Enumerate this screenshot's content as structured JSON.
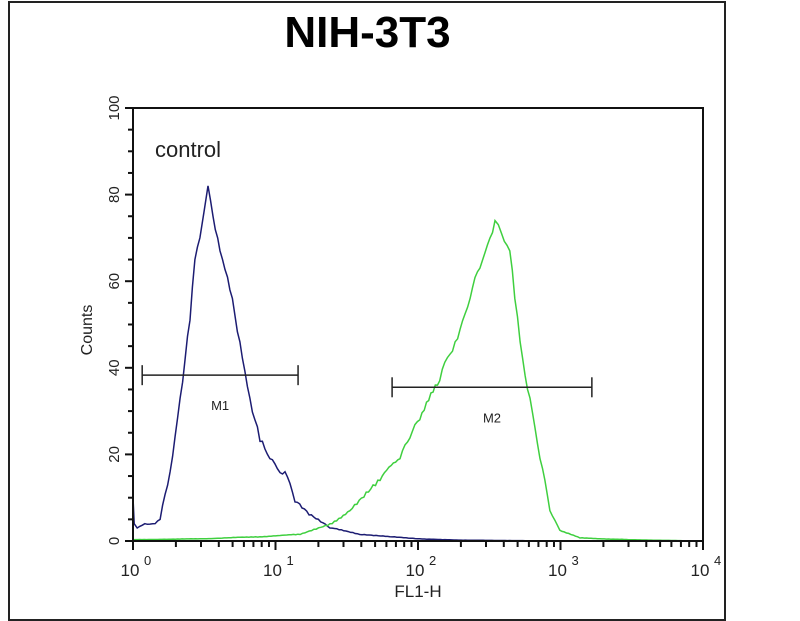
{
  "chart_data": {
    "type": "line",
    "title": "NIH-3T3",
    "xlabel": "FL1-H",
    "ylabel": "Counts",
    "x_scale": "log",
    "xlim": [
      1,
      10000
    ],
    "ylim": [
      0,
      100
    ],
    "x_ticks": [
      {
        "base": "10",
        "exp": "0"
      },
      {
        "base": "10",
        "exp": "1"
      },
      {
        "base": "10",
        "exp": "2"
      },
      {
        "base": "10",
        "exp": "3"
      },
      {
        "base": "10",
        "exp": "4"
      }
    ],
    "y_ticks": [
      "0",
      "20",
      "40",
      "60",
      "80",
      "100"
    ],
    "annotation": "control",
    "grid": false,
    "series": [
      {
        "color": "#1c1c72",
        "x": [
          1.0,
          1.02,
          1.07,
          1.21,
          1.43,
          1.55,
          1.82,
          2.14,
          2.51,
          2.72,
          2.95,
          3.15,
          3.36,
          3.64,
          4.08,
          4.79,
          5.63,
          6.61,
          7.78,
          9.13,
          11.66,
          13.7,
          17.2,
          24.1,
          39.0,
          63.5,
          103,
          200,
          1000,
          10000
        ],
        "y": [
          10,
          4,
          3,
          4,
          4,
          5,
          16,
          33,
          51,
          65,
          70,
          76,
          82,
          75,
          67,
          58,
          46,
          33,
          23,
          19,
          16,
          9,
          6,
          3,
          1.5,
          1,
          0.5,
          0.2,
          0,
          0
        ]
      },
      {
        "color": "#3fcf3f",
        "x": [
          1.0,
          2.95,
          7.78,
          14.9,
          24.1,
          33.3,
          54.2,
          74.8,
          103,
          142,
          182,
          232,
          272,
          320,
          347,
          386,
          441,
          478,
          521,
          611,
          718,
          842,
          988,
          1370,
          3000,
          9600
        ],
        "y": [
          0.3,
          0.5,
          1,
          1.5,
          4,
          7,
          14,
          19,
          28,
          37,
          46,
          56,
          63,
          70,
          74,
          71,
          67,
          56,
          46,
          33,
          19,
          7,
          2.5,
          0.7,
          0.3,
          0
        ]
      }
    ],
    "markers": [
      {
        "label": "M1",
        "x_start": 1.16,
        "x_end": 14.4,
        "y": 38.3
      },
      {
        "label": "M2",
        "x_start": 65.8,
        "x_end": 1660,
        "y": 35.5
      }
    ]
  }
}
